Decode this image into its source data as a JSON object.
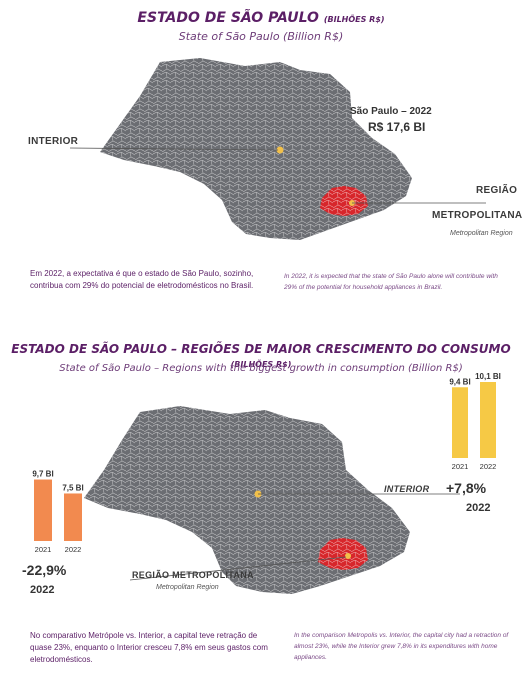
{
  "section1": {
    "title": "ESTADO DE SÃO PAULO",
    "unit": "(BILHÕES R$)",
    "subtitle": "State of São Paulo (Billion R$)",
    "sp_label": "São Paulo – 2022",
    "sp_value": "R$ 17,6 BI",
    "interior": "INTERIOR",
    "regiao_l1": "REGIÃO",
    "regiao_l2": "METROPOLITANA",
    "metro_en": "Metropolitan Region",
    "para_pt": "Em 2022, a expectativa é que o estado de São Paulo, sozinho, contribua com 29% do potencial de eletrodomésticos no Brasil.",
    "para_en": "In 2022, it is expected that the state of São Paulo alone will contribute with 29% of the potential for household appliances in Brazil."
  },
  "section2": {
    "title": "ESTADO DE SÃO PAULO – REGIÕES DE MAIOR CRESCIMENTO DO CONSUMO",
    "unit": "(BILHÕES R$)",
    "subtitle": "State of São Paulo – Regions with the biggest growth in consumption (Billion R$)",
    "interior": "INTERIOR",
    "regiao": "REGIÃO METROPOLITANA",
    "metro_en": "Metropolitan Region",
    "metro_change": "-22,9%",
    "metro_change_year": "2022",
    "interior_change": "+7,8%",
    "interior_change_year": "2022",
    "para_pt": "No comparativo Metrópole vs. Interior, a capital teve retração de quase 23%, enquanto o Interior cresceu 7,8% em seus gastos com eletrodomésticos.",
    "para_en": "In the comparison Metropolis vs. Interior, the capital city had a retraction of almost 23%, while the Interior grew 7,8% in its expenditures with home appliances."
  },
  "colors": {
    "title": "#5b1f66",
    "map": "#6b6d72",
    "metro": "#d7262b",
    "metro_bar": "#f28a4f",
    "interior_bar": "#f6c945",
    "interior_dot": "#f2c04a"
  },
  "chart_data": [
    {
      "type": "bar",
      "title": "Região Metropolitana",
      "categories": [
        "2021",
        "2022"
      ],
      "values": [
        9.7,
        7.5
      ],
      "value_labels": [
        "9,7 BI",
        "7,5 BI"
      ],
      "ylim": [
        0,
        10.1
      ]
    },
    {
      "type": "bar",
      "title": "Interior",
      "categories": [
        "2021",
        "2022"
      ],
      "values": [
        9.4,
        10.1
      ],
      "value_labels": [
        "9,4 BI",
        "10,1 BI"
      ],
      "ylim": [
        0,
        10.1
      ]
    }
  ]
}
